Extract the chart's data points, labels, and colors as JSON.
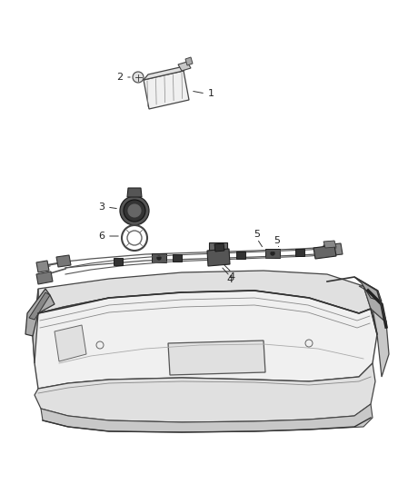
{
  "bg_color": "#ffffff",
  "fig_width": 4.38,
  "fig_height": 5.33,
  "dpi": 100,
  "line_color": "#333333",
  "text_color": "#222222",
  "edge_color": "#444444",
  "fill_light": "#f0f0f0",
  "fill_mid": "#e0e0e0",
  "fill_dark": "#c8c8c8",
  "fill_darker": "#aaaaaa"
}
